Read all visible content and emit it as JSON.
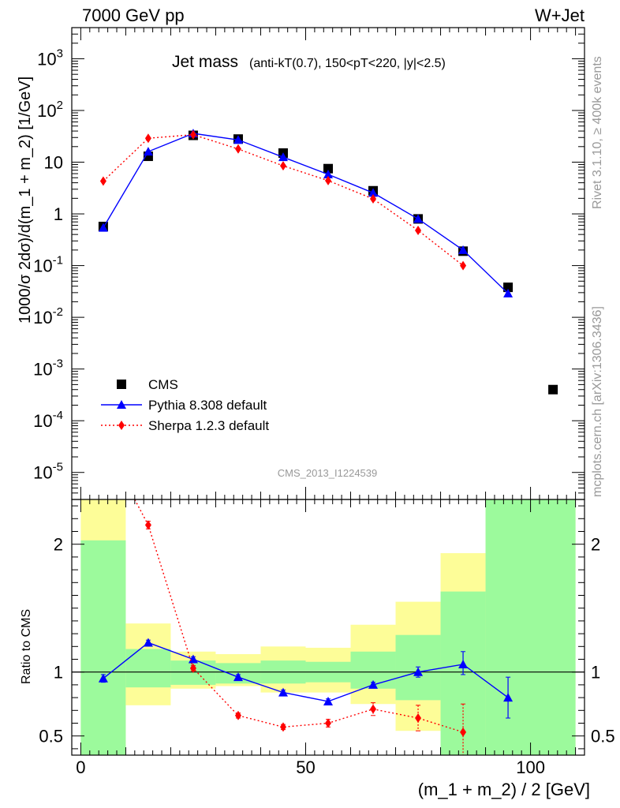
{
  "header": {
    "left": "7000 GeV pp",
    "right": "W+Jet"
  },
  "side_labels": {
    "rivet": "Rivet 3.1.10, ≥ 400k events",
    "mcplots": "mcplots.cern.ch [arXiv:1306.3436]"
  },
  "chart_data": [
    {
      "type": "scatter",
      "title_main": "Jet mass",
      "title_sub": "(anti-kT(0.7), 150<pT<220, |y|<2.5)",
      "watermark": "CMS_2013_I1224539",
      "ylabel": "1000/σ 2dσ)/d(m_1 + m_2) [1/GeV]",
      "yscale": "log",
      "ylim": [
        3e-06,
        4000
      ],
      "xlim": [
        -2,
        112
      ],
      "ytick_labels": [
        "10^-5",
        "10^-4",
        "10^-3",
        "10^-2",
        "10^-1",
        "1",
        "10",
        "10^2",
        "10^3"
      ],
      "legend": {
        "placement": "lower-left"
      },
      "series": [
        {
          "name": "CMS",
          "style": "square-marker",
          "color": "#000000",
          "x": [
            5,
            15,
            25,
            35,
            45,
            55,
            65,
            75,
            85,
            95,
            105
          ],
          "y": [
            0.57,
            13,
            33,
            28,
            15,
            7.5,
            2.8,
            0.8,
            0.19,
            0.038,
            0.0004
          ]
        },
        {
          "name": "Pythia 8.308 default",
          "style": "line-triangle",
          "color": "#0000ff",
          "x": [
            5,
            15,
            25,
            35,
            45,
            55,
            65,
            75,
            85,
            95
          ],
          "y": [
            0.54,
            16,
            36,
            27,
            12.5,
            5.8,
            2.55,
            0.8,
            0.2,
            0.029
          ]
        },
        {
          "name": "Sherpa 1.2.3 default",
          "style": "dotted-diamond",
          "color": "#ff0000",
          "x": [
            5,
            15,
            25,
            35,
            45,
            55,
            65,
            75,
            85
          ],
          "y": [
            4.3,
            29,
            34,
            18,
            8.5,
            4.4,
            1.95,
            0.48,
            0.1
          ]
        }
      ]
    },
    {
      "type": "line",
      "ylabel": "Ratio to CMS",
      "xlabel": "(m_1 + m_2) / 2 [GeV]",
      "ylim": [
        0.35,
        2.35
      ],
      "xlim": [
        -2,
        112
      ],
      "x_ticks": [
        "0",
        "50",
        "100"
      ],
      "y_ticks": [
        "0.5",
        "1",
        "2"
      ],
      "bands": {
        "bin_edges": [
          0,
          10,
          20,
          30,
          40,
          50,
          60,
          70,
          80,
          90,
          110
        ],
        "green_lo": [
          0.35,
          0.88,
          0.9,
          0.91,
          0.91,
          0.92,
          0.87,
          0.78,
          0.35,
          0.35
        ],
        "green_hi": [
          2.03,
          1.18,
          1.09,
          1.07,
          1.09,
          1.08,
          1.16,
          1.29,
          1.63,
          2.35
        ],
        "yellow_lo": [
          0.35,
          0.74,
          0.87,
          0.89,
          0.84,
          0.84,
          0.75,
          0.54,
          0.35,
          0.35
        ],
        "yellow_hi": [
          2.35,
          1.38,
          1.16,
          1.14,
          1.2,
          1.19,
          1.37,
          1.55,
          1.93,
          2.35
        ],
        "green_color": "#9cfa9c",
        "yellow_color": "#fdfd98"
      },
      "series": [
        {
          "name": "Pythia 8.308 default",
          "color": "#0000ff",
          "x": [
            5,
            15,
            25,
            35,
            45,
            55,
            65,
            75,
            85,
            95
          ],
          "y": [
            0.95,
            1.23,
            1.1,
            0.96,
            0.84,
            0.77,
            0.9,
            1.0,
            1.06,
            0.8
          ],
          "err_lo": [
            0.03,
            0.02,
            0.02,
            0.02,
            0.02,
            0.02,
            0.02,
            0.04,
            0.08,
            0.16
          ],
          "err_hi": [
            0.03,
            0.02,
            0.02,
            0.02,
            0.02,
            0.02,
            0.02,
            0.04,
            0.1,
            0.16
          ]
        },
        {
          "name": "Sherpa 1.2.3 default",
          "color": "#ff0000",
          "x": [
            12,
            15,
            25,
            35,
            45,
            55,
            65,
            75,
            85
          ],
          "y": [
            2.35,
            2.15,
            1.03,
            0.66,
            0.57,
            0.6,
            0.71,
            0.64,
            0.53
          ],
          "err_lo": [
            0,
            0.03,
            0.02,
            0.02,
            0.02,
            0.03,
            0.05,
            0.1,
            0.18
          ],
          "err_hi": [
            0,
            0.03,
            0.02,
            0.02,
            0.02,
            0.03,
            0.05,
            0.1,
            0.22
          ]
        }
      ]
    }
  ]
}
